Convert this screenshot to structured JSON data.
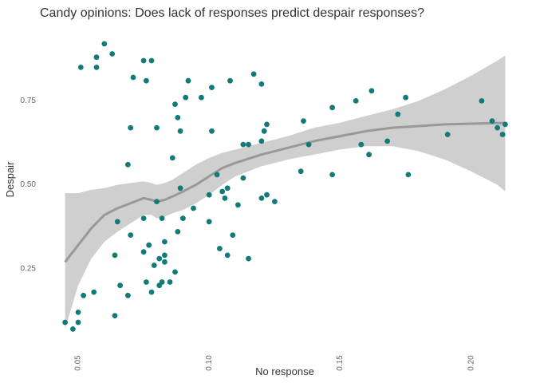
{
  "chart_data": {
    "type": "scatter",
    "title": "Candy opinions: Does lack of responses predict despair responses?",
    "xlabel": "No response",
    "ylabel": "Despair",
    "xlim": [
      0.043,
      0.215
    ],
    "ylim": [
      0.04,
      0.965
    ],
    "xticks": [
      0.05,
      0.1,
      0.15,
      0.2
    ],
    "xtick_labels": [
      "0.05",
      "0.10",
      "0.15",
      "0.20"
    ],
    "yticks": [
      0.25,
      0.5,
      0.75
    ],
    "ytick_labels": [
      "0.25",
      "0.50",
      "0.75"
    ],
    "grid": false,
    "legend": "none",
    "colors": {
      "points": "#137a7a",
      "smooth": "#999999",
      "band": "#cfcfcf"
    },
    "points": [
      [
        0.045,
        0.09
      ],
      [
        0.048,
        0.07
      ],
      [
        0.05,
        0.09
      ],
      [
        0.05,
        0.12
      ],
      [
        0.051,
        0.85
      ],
      [
        0.052,
        0.17
      ],
      [
        0.056,
        0.18
      ],
      [
        0.057,
        0.88
      ],
      [
        0.057,
        0.85
      ],
      [
        0.06,
        0.92
      ],
      [
        0.063,
        0.89
      ],
      [
        0.064,
        0.11
      ],
      [
        0.064,
        0.29
      ],
      [
        0.065,
        0.39
      ],
      [
        0.066,
        0.2
      ],
      [
        0.069,
        0.56
      ],
      [
        0.069,
        0.17
      ],
      [
        0.07,
        0.67
      ],
      [
        0.07,
        0.35
      ],
      [
        0.071,
        0.82
      ],
      [
        0.075,
        0.87
      ],
      [
        0.075,
        0.4
      ],
      [
        0.075,
        0.3
      ],
      [
        0.076,
        0.81
      ],
      [
        0.076,
        0.21
      ],
      [
        0.077,
        0.32
      ],
      [
        0.078,
        0.87
      ],
      [
        0.078,
        0.18
      ],
      [
        0.079,
        0.26
      ],
      [
        0.08,
        0.67
      ],
      [
        0.08,
        0.45
      ],
      [
        0.081,
        0.28
      ],
      [
        0.081,
        0.2
      ],
      [
        0.082,
        0.4
      ],
      [
        0.082,
        0.21
      ],
      [
        0.083,
        0.33
      ],
      [
        0.083,
        0.29
      ],
      [
        0.083,
        0.27
      ],
      [
        0.085,
        0.21
      ],
      [
        0.086,
        0.58
      ],
      [
        0.087,
        0.74
      ],
      [
        0.087,
        0.24
      ],
      [
        0.088,
        0.7
      ],
      [
        0.088,
        0.36
      ],
      [
        0.089,
        0.66
      ],
      [
        0.089,
        0.49
      ],
      [
        0.09,
        0.4
      ],
      [
        0.091,
        0.76
      ],
      [
        0.092,
        0.81
      ],
      [
        0.094,
        0.43
      ],
      [
        0.097,
        0.76
      ],
      [
        0.1,
        0.39
      ],
      [
        0.1,
        0.47
      ],
      [
        0.101,
        0.79
      ],
      [
        0.101,
        0.66
      ],
      [
        0.103,
        0.53
      ],
      [
        0.104,
        0.31
      ],
      [
        0.105,
        0.48
      ],
      [
        0.106,
        0.46
      ],
      [
        0.107,
        0.49
      ],
      [
        0.107,
        0.29
      ],
      [
        0.108,
        0.81
      ],
      [
        0.109,
        0.35
      ],
      [
        0.111,
        0.44
      ],
      [
        0.113,
        0.52
      ],
      [
        0.113,
        0.62
      ],
      [
        0.115,
        0.62
      ],
      [
        0.115,
        0.28
      ],
      [
        0.117,
        0.83
      ],
      [
        0.12,
        0.46
      ],
      [
        0.12,
        0.63
      ],
      [
        0.12,
        0.8
      ],
      [
        0.121,
        0.66
      ],
      [
        0.122,
        0.68
      ],
      [
        0.122,
        0.47
      ],
      [
        0.125,
        0.45
      ],
      [
        0.135,
        0.54
      ],
      [
        0.136,
        0.69
      ],
      [
        0.138,
        0.62
      ],
      [
        0.147,
        0.73
      ],
      [
        0.147,
        0.53
      ],
      [
        0.156,
        0.75
      ],
      [
        0.158,
        0.62
      ],
      [
        0.161,
        0.59
      ],
      [
        0.162,
        0.78
      ],
      [
        0.168,
        0.63
      ],
      [
        0.172,
        0.71
      ],
      [
        0.175,
        0.76
      ],
      [
        0.176,
        0.53
      ],
      [
        0.191,
        0.65
      ],
      [
        0.204,
        0.75
      ],
      [
        0.208,
        0.69
      ],
      [
        0.21,
        0.67
      ],
      [
        0.212,
        0.65
      ],
      [
        0.213,
        0.68
      ]
    ],
    "smooth": {
      "x": [
        0.045,
        0.05,
        0.055,
        0.06,
        0.065,
        0.07,
        0.075,
        0.078,
        0.08,
        0.083,
        0.086,
        0.09,
        0.095,
        0.1,
        0.105,
        0.11,
        0.12,
        0.13,
        0.14,
        0.15,
        0.16,
        0.17,
        0.18,
        0.19,
        0.2,
        0.21,
        0.213
      ],
      "y": [
        0.27,
        0.32,
        0.37,
        0.41,
        0.43,
        0.445,
        0.46,
        0.455,
        0.45,
        0.455,
        0.465,
        0.48,
        0.5,
        0.525,
        0.55,
        0.565,
        0.59,
        0.61,
        0.63,
        0.645,
        0.66,
        0.67,
        0.675,
        0.68,
        0.682,
        0.684,
        0.684
      ],
      "lower": [
        0.07,
        0.2,
        0.28,
        0.33,
        0.36,
        0.385,
        0.41,
        0.41,
        0.4,
        0.405,
        0.415,
        0.425,
        0.445,
        0.47,
        0.5,
        0.525,
        0.555,
        0.575,
        0.59,
        0.605,
        0.615,
        0.615,
        0.6,
        0.575,
        0.54,
        0.5,
        0.48
      ],
      "upper": [
        0.475,
        0.475,
        0.485,
        0.49,
        0.5,
        0.505,
        0.51,
        0.505,
        0.5,
        0.505,
        0.515,
        0.535,
        0.56,
        0.58,
        0.595,
        0.605,
        0.625,
        0.645,
        0.67,
        0.685,
        0.705,
        0.725,
        0.75,
        0.785,
        0.825,
        0.87,
        0.885
      ]
    }
  }
}
